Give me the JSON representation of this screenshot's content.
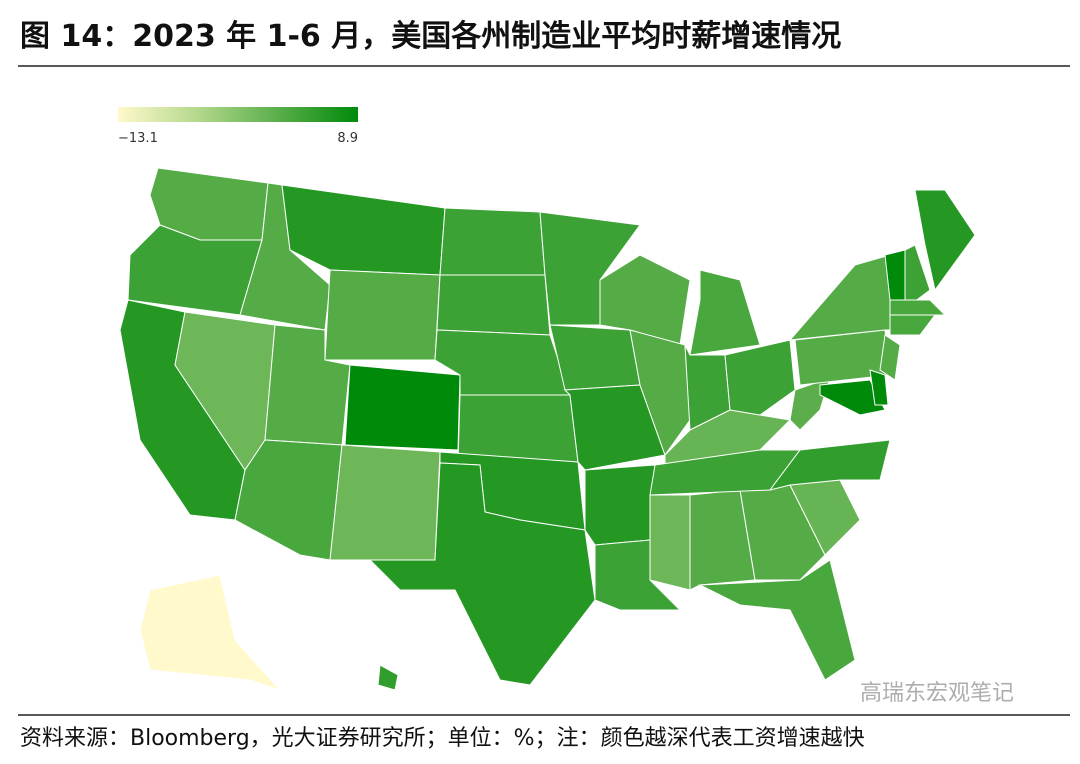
{
  "chart_data": {
    "type": "choropleth",
    "title": "图 14：2023 年 1-6 月，美国各州制造业平均时薪增速情况",
    "source": "资料来源：Bloomberg，光大证券研究所；单位：%；注：颜色越深代表工资增速越快",
    "watermark": "高瑞东宏观笔记",
    "legend": {
      "min": {
        "value": -13.1,
        "label": "−13.1"
      },
      "max": 8.9
    },
    "colors": [
      "#fff9cc",
      "#b3d88c",
      "#5aae4a",
      "#008a0a"
    ],
    "values": [
      2,
      4,
      6,
      0,
      2,
      6,
      2,
      2,
      3,
      8.9,
      0,
      4,
      4,
      4,
      4,
      6,
      6,
      4,
      4,
      6,
      6,
      4,
      2,
      2,
      3,
      4,
      0.5,
      4,
      0,
      2,
      2,
      3,
      0.5,
      4,
      5,
      1.5,
      2,
      2,
      6,
      8.9,
      4,
      3,
      3,
      2,
      8.9,
      8.9,
      -13.1,
      5
    ]
  }
}
